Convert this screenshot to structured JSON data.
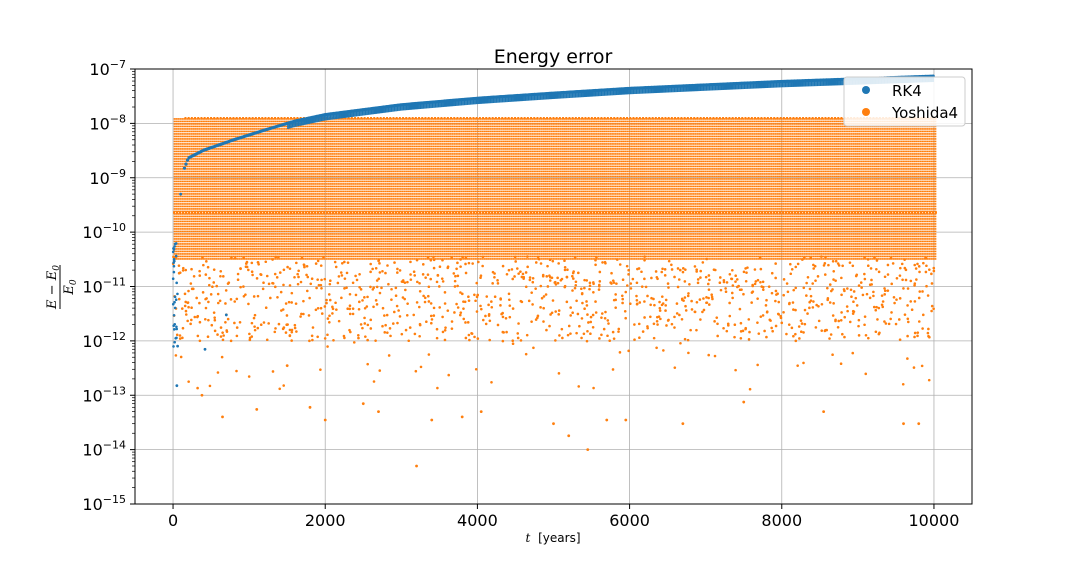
{
  "chart_data": {
    "type": "scatter",
    "title": "Energy error",
    "xlabel": {
      "var": "t",
      "unit": "[years]"
    },
    "ylabel": {
      "numerator": "E − E",
      "numerator_sub": "0",
      "denominator": "E",
      "denominator_sub": "0"
    },
    "xlim": [
      -500,
      10500
    ],
    "ylim_log10": [
      -15,
      -7
    ],
    "yscale": "log",
    "grid": true,
    "legend_position": "top-right",
    "x_ticks": [
      0,
      2000,
      4000,
      6000,
      8000,
      10000
    ],
    "x_tick_labels": [
      "0",
      "2000",
      "4000",
      "6000",
      "8000",
      "10000"
    ],
    "y_tick_exponents": [
      -7,
      -8,
      -9,
      -10,
      -11,
      -12,
      -13,
      -14,
      -15
    ],
    "y_tick_labels": [
      "10^-7",
      "10^-8",
      "10^-9",
      "10^-10",
      "10^-11",
      "10^-12",
      "10^-13",
      "10^-14",
      "10^-15"
    ],
    "series": [
      {
        "name": "RK4",
        "color": "#1f77b4",
        "description_points": [
          [
            0,
            5e-11
          ],
          [
            30,
            2e-11
          ],
          [
            50,
            1.5e-13
          ],
          [
            60,
            8e-13
          ],
          [
            100,
            5e-10
          ],
          [
            150,
            1.5e-09
          ],
          [
            200,
            2.3e-09
          ],
          [
            400,
            3.2e-09
          ],
          [
            800,
            5e-09
          ],
          [
            1200,
            7.5e-09
          ],
          [
            1600,
            1.1e-08
          ],
          [
            2000,
            1.45e-08
          ],
          [
            3000,
            2.2e-08
          ],
          [
            4000,
            2.9e-08
          ],
          [
            5000,
            3.6e-08
          ],
          [
            6000,
            4.4e-08
          ],
          [
            7000,
            5.1e-08
          ],
          [
            8000,
            5.9e-08
          ],
          [
            9000,
            6.6e-08
          ],
          [
            10000,
            7.4e-08
          ]
        ]
      },
      {
        "name": "Yoshida4",
        "color": "#ff7f0e",
        "upper_envelope": 1.25e-08,
        "band_level": 2.3e-10,
        "x_range": [
          0,
          10000
        ],
        "sparse_low_points": [
          [
            380,
            1e-13
          ],
          [
            650,
            4e-14
          ],
          [
            1100,
            5.5e-14
          ],
          [
            1500,
            3.5e-13
          ],
          [
            1800,
            6e-14
          ],
          [
            2000,
            3.5e-14
          ],
          [
            2500,
            7e-14
          ],
          [
            2700,
            5e-14
          ],
          [
            3200,
            5e-15
          ],
          [
            3400,
            3.5e-14
          ],
          [
            3800,
            4e-14
          ],
          [
            4050,
            5e-14
          ],
          [
            5000,
            3e-14
          ],
          [
            5200,
            1.8e-14
          ],
          [
            5450,
            1e-14
          ],
          [
            5700,
            3.5e-14
          ],
          [
            5950,
            3.5e-14
          ],
          [
            6700,
            3e-14
          ],
          [
            7500,
            7.5e-14
          ],
          [
            8550,
            5e-14
          ],
          [
            9600,
            3e-14
          ],
          [
            9800,
            3e-14
          ]
        ]
      }
    ]
  }
}
